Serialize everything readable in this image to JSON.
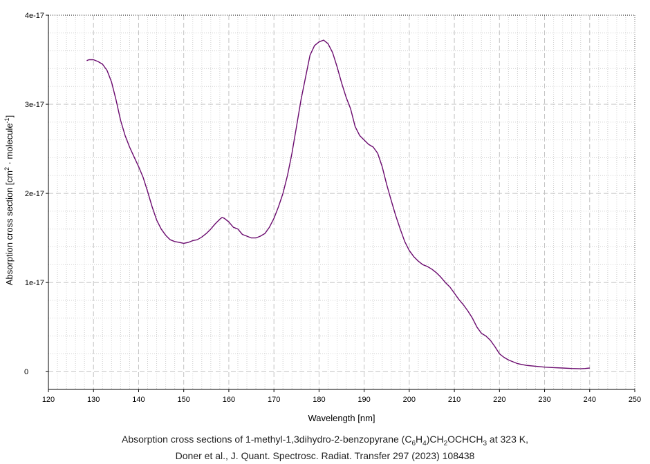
{
  "chart_data": {
    "type": "line",
    "xlabel": "Wavelength [nm]",
    "ylabel_main": "Absorption cross section [cm",
    "ylabel_sup": "2",
    "ylabel_rest": " · molecule",
    "ylabel_sup2": "-1",
    "ylabel_end": "]",
    "xlim": [
      120,
      250
    ],
    "ylim": [
      -2e-18,
      4e-17
    ],
    "x_ticks": [
      120,
      130,
      140,
      150,
      160,
      170,
      180,
      190,
      200,
      210,
      220,
      230,
      240,
      250
    ],
    "y_ticks": [
      {
        "value": 0,
        "label": "0"
      },
      {
        "value": 1e-17,
        "label": "1e-17"
      },
      {
        "value": 2e-17,
        "label": "2e-17"
      },
      {
        "value": 3e-17,
        "label": "3e-17"
      },
      {
        "value": 4e-17,
        "label": "4e-17"
      }
    ],
    "grid": true,
    "series": [
      {
        "color": "#6a0a6e",
        "x": [
          128.5,
          129,
          130,
          131,
          132,
          133,
          134,
          135,
          136,
          137,
          138,
          139,
          140,
          141,
          142,
          143,
          144,
          145,
          146,
          147,
          148,
          149,
          150,
          151,
          152,
          153,
          154,
          155,
          156,
          157,
          158,
          158.5,
          159,
          160,
          161,
          162,
          163,
          164,
          165,
          166,
          167,
          168,
          169,
          170,
          171,
          172,
          173,
          174,
          175,
          176,
          177,
          178,
          179,
          180,
          181,
          182,
          183,
          184,
          185,
          186,
          187,
          188,
          189,
          190,
          191,
          192,
          193,
          194,
          195,
          196,
          197,
          198,
          199,
          200,
          201,
          202,
          203,
          204,
          205,
          206,
          207,
          208,
          209,
          210,
          211,
          212,
          213,
          214,
          215,
          216,
          217,
          218,
          219,
          220,
          221,
          222,
          223,
          224,
          225,
          226,
          228,
          230,
          232,
          234,
          236,
          238,
          239,
          240
        ],
        "y": [
          3.49e-17,
          3.5e-17,
          3.5e-17,
          3.48e-17,
          3.45e-17,
          3.38e-17,
          3.25e-17,
          3.05e-17,
          2.82e-17,
          2.65e-17,
          2.52e-17,
          2.41e-17,
          2.3e-17,
          2.18e-17,
          2.02e-17,
          1.85e-17,
          1.7e-17,
          1.6e-17,
          1.53e-17,
          1.48e-17,
          1.46e-17,
          1.45e-17,
          1.44e-17,
          1.45e-17,
          1.47e-17,
          1.48e-17,
          1.51e-17,
          1.55e-17,
          1.6e-17,
          1.66e-17,
          1.71e-17,
          1.73e-17,
          1.72e-17,
          1.68e-17,
          1.62e-17,
          1.6e-17,
          1.54e-17,
          1.52e-17,
          1.5e-17,
          1.5e-17,
          1.52e-17,
          1.55e-17,
          1.62e-17,
          1.72e-17,
          1.85e-17,
          2e-17,
          2.2e-17,
          2.45e-17,
          2.75e-17,
          3.05e-17,
          3.3e-17,
          3.55e-17,
          3.66e-17,
          3.7e-17,
          3.72e-17,
          3.68e-17,
          3.58e-17,
          3.42e-17,
          3.24e-17,
          3.08e-17,
          2.95e-17,
          2.75e-17,
          2.65e-17,
          2.6e-17,
          2.55e-17,
          2.52e-17,
          2.45e-17,
          2.3e-17,
          2.1e-17,
          1.92e-17,
          1.75e-17,
          1.6e-17,
          1.46e-17,
          1.36e-17,
          1.29e-17,
          1.24e-17,
          1.2e-17,
          1.18e-17,
          1.15e-17,
          1.11e-17,
          1.06e-17,
          1e-17,
          9.5e-18,
          8.8e-18,
          8.1e-18,
          7.5e-18,
          6.8e-18,
          6e-18,
          5e-18,
          4.3e-18,
          4e-18,
          3.5e-18,
          2.8e-18,
          2e-18,
          1.6e-18,
          1.3e-18,
          1.1e-18,
          9e-19,
          8e-19,
          7e-19,
          6e-19,
          5e-19,
          4.5e-19,
          4e-19,
          3.5e-19,
          3.2e-19,
          3.5e-19,
          4e-19
        ]
      }
    ]
  },
  "caption": {
    "line1_a": "Absorption cross sections of 1-methyl-1,3dihydro-2-benzopyrane (C",
    "line1_sub1": "6",
    "line1_b": "H",
    "line1_sub2": "4",
    "line1_c": ")CH",
    "line1_sub3": "2",
    "line1_d": "OCHCH",
    "line1_sub4": "3",
    "line1_e": " at 323 K,",
    "line2": "Doner et al., J. Quant. Spectrosc. Radiat. Transfer 297 (2023) 108438"
  }
}
